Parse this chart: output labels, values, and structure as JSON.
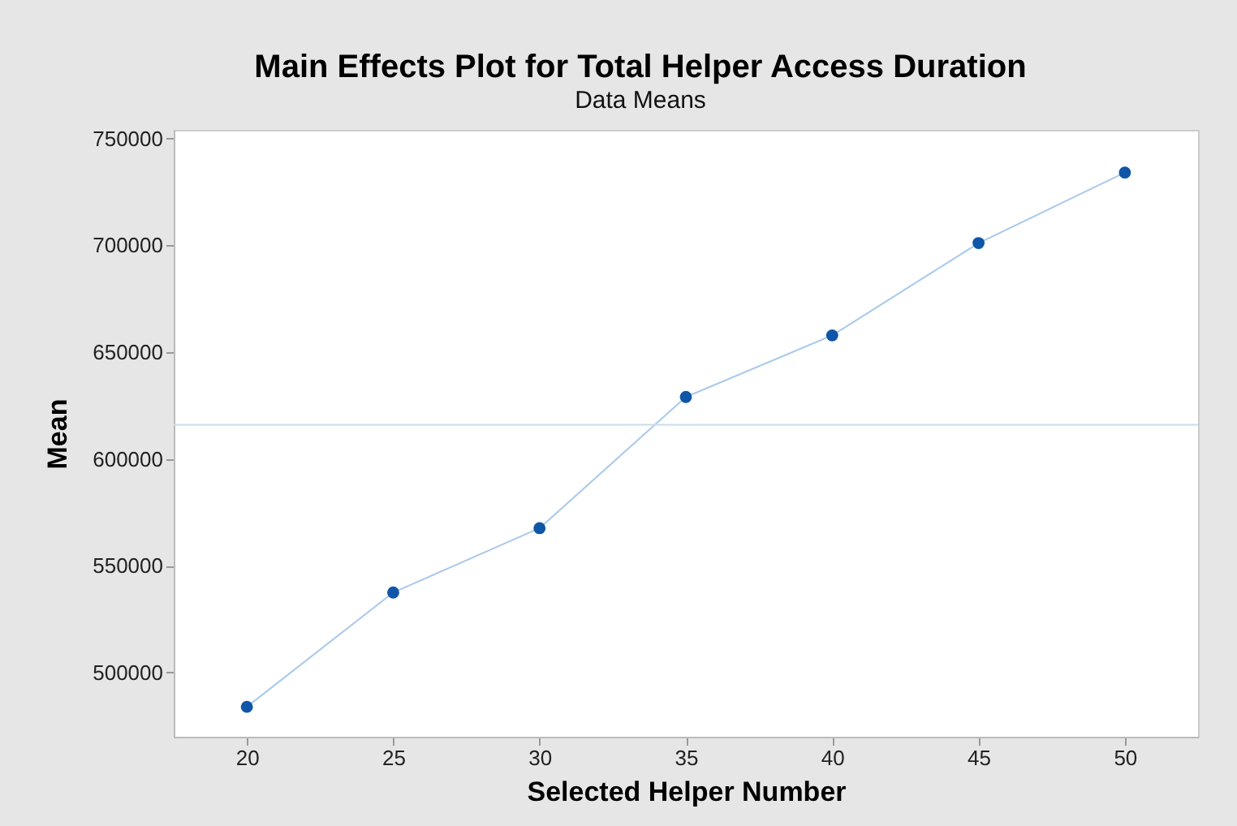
{
  "chart_data": {
    "type": "line",
    "title": "Main Effects Plot for Total Helper Access Duration",
    "subtitle": "Data Means",
    "xlabel": "Selected Helper Number",
    "ylabel": "Mean",
    "x": [
      20,
      25,
      30,
      35,
      40,
      45,
      50
    ],
    "series": [
      {
        "color": "#0f56a8",
        "values": [
          484000,
          537500,
          567600,
          629000,
          657800,
          701000,
          734000
        ]
      }
    ],
    "xlim": [
      17.5,
      52.5
    ],
    "xticks": [
      20,
      25,
      30,
      35,
      40,
      45,
      50
    ],
    "ylim": [
      470000,
      754000
    ],
    "yticks": [
      500000,
      550000,
      600000,
      650000,
      700000,
      750000
    ],
    "ref_lines": [
      {
        "axis": "y",
        "value": 616000,
        "color": "#c8dcec"
      }
    ],
    "grid": false,
    "marker": "circle",
    "line_style": "solid"
  }
}
